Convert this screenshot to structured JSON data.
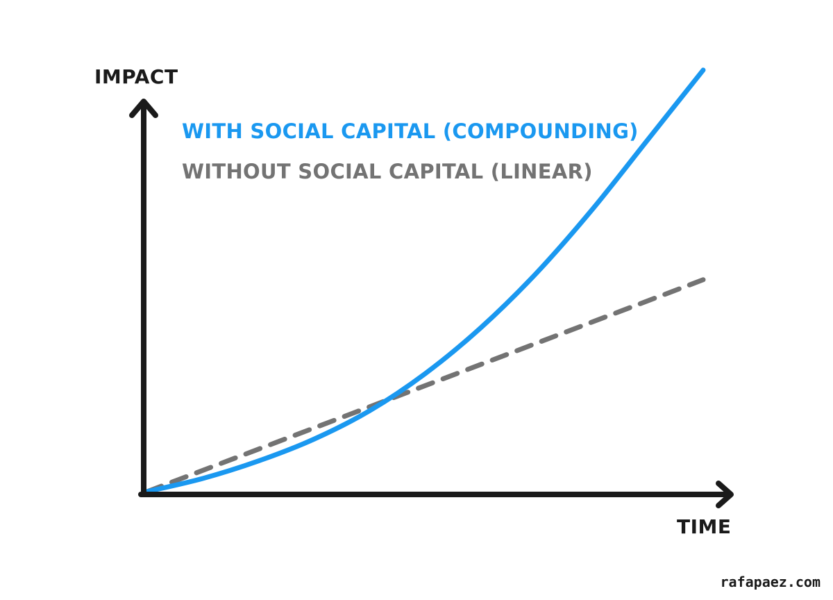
{
  "chart_data": {
    "type": "line",
    "title": "",
    "xlabel": "TIME",
    "ylabel": "IMPACT",
    "grid": false,
    "legend": "top-left",
    "xlim": [
      0,
      10
    ],
    "ylim": [
      0,
      10
    ],
    "series": [
      {
        "name": "WITH SOCIAL CAPITAL (COMPOUNDING)",
        "style": "solid",
        "color": "#1a98f0",
        "x": [
          0,
          1,
          2,
          3,
          4,
          5,
          6,
          7,
          8,
          9,
          10
        ],
        "y": [
          0.05,
          0.35,
          0.75,
          1.25,
          1.9,
          2.75,
          3.8,
          5.05,
          6.5,
          8.1,
          9.7
        ]
      },
      {
        "name": "WITHOUT SOCIAL CAPITAL (LINEAR)",
        "style": "dashed",
        "color": "#737373",
        "x": [
          0,
          10
        ],
        "y": [
          0.05,
          4.9
        ]
      }
    ]
  },
  "watermark": "rafapaez.com"
}
